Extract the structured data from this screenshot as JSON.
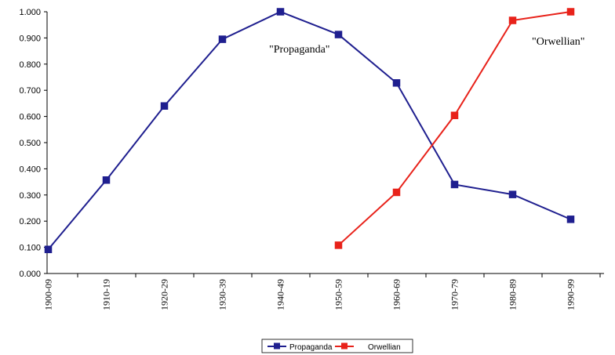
{
  "chart_data": {
    "type": "line",
    "categories": [
      "1900-09",
      "1910-19",
      "1920-29",
      "1930-39",
      "1940-49",
      "1950-59",
      "1960-69",
      "1970-79",
      "1980-89",
      "1990-99"
    ],
    "series": [
      {
        "name": "Propaganda",
        "color": "#1f1f8f",
        "values": [
          0.092,
          0.357,
          0.64,
          0.895,
          1.0,
          0.913,
          0.728,
          0.34,
          0.302,
          0.207
        ]
      },
      {
        "name": "Orwellian",
        "color": "#e8221a",
        "values": [
          null,
          null,
          null,
          null,
          null,
          0.108,
          0.31,
          0.604,
          0.967,
          1.0
        ]
      }
    ],
    "ylim": [
      0,
      1
    ],
    "yticks": [
      "0.000",
      "0.100",
      "0.200",
      "0.300",
      "0.400",
      "0.500",
      "0.600",
      "0.700",
      "0.800",
      "0.900",
      "1.000"
    ],
    "annotations": [
      {
        "text": "\"Propaganda\"",
        "series": "Propaganda"
      },
      {
        "text": "\"Orwellian\"",
        "series": "Orwellian"
      }
    ],
    "legend": "bottom",
    "grid": false
  }
}
